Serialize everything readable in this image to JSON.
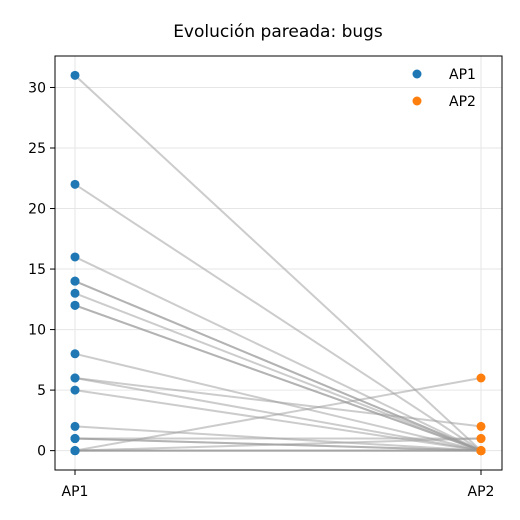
{
  "chart_data": {
    "type": "scatter",
    "title": "Evolución pareada: bugs",
    "categories": [
      "AP1",
      "AP2"
    ],
    "yticks": [
      0,
      5,
      10,
      15,
      20,
      25,
      30
    ],
    "ylim": [
      -1.6,
      32.6
    ],
    "grid": true,
    "legend": "top-right",
    "series": [
      {
        "name": "AP1",
        "color": "#1f77b4"
      },
      {
        "name": "AP2",
        "color": "#ff7f0e"
      }
    ],
    "pairs": [
      {
        "ap1": 31,
        "ap2": 0
      },
      {
        "ap1": 22,
        "ap2": 0
      },
      {
        "ap1": 16,
        "ap2": 0
      },
      {
        "ap1": 14,
        "ap2": 0
      },
      {
        "ap1": 14,
        "ap2": 0
      },
      {
        "ap1": 13,
        "ap2": 0
      },
      {
        "ap1": 12,
        "ap2": 0
      },
      {
        "ap1": 12,
        "ap2": 0
      },
      {
        "ap1": 8,
        "ap2": 0
      },
      {
        "ap1": 6,
        "ap2": 2
      },
      {
        "ap1": 6,
        "ap2": 0
      },
      {
        "ap1": 5,
        "ap2": 0
      },
      {
        "ap1": 2,
        "ap2": 0
      },
      {
        "ap1": 1,
        "ap2": 0
      },
      {
        "ap1": 1,
        "ap2": 1
      },
      {
        "ap1": 1,
        "ap2": 0
      },
      {
        "ap1": 0,
        "ap2": 6
      },
      {
        "ap1": 0,
        "ap2": 1
      },
      {
        "ap1": 0,
        "ap2": 0
      },
      {
        "ap1": 0,
        "ap2": 0
      },
      {
        "ap1": 0,
        "ap2": 0
      }
    ]
  }
}
